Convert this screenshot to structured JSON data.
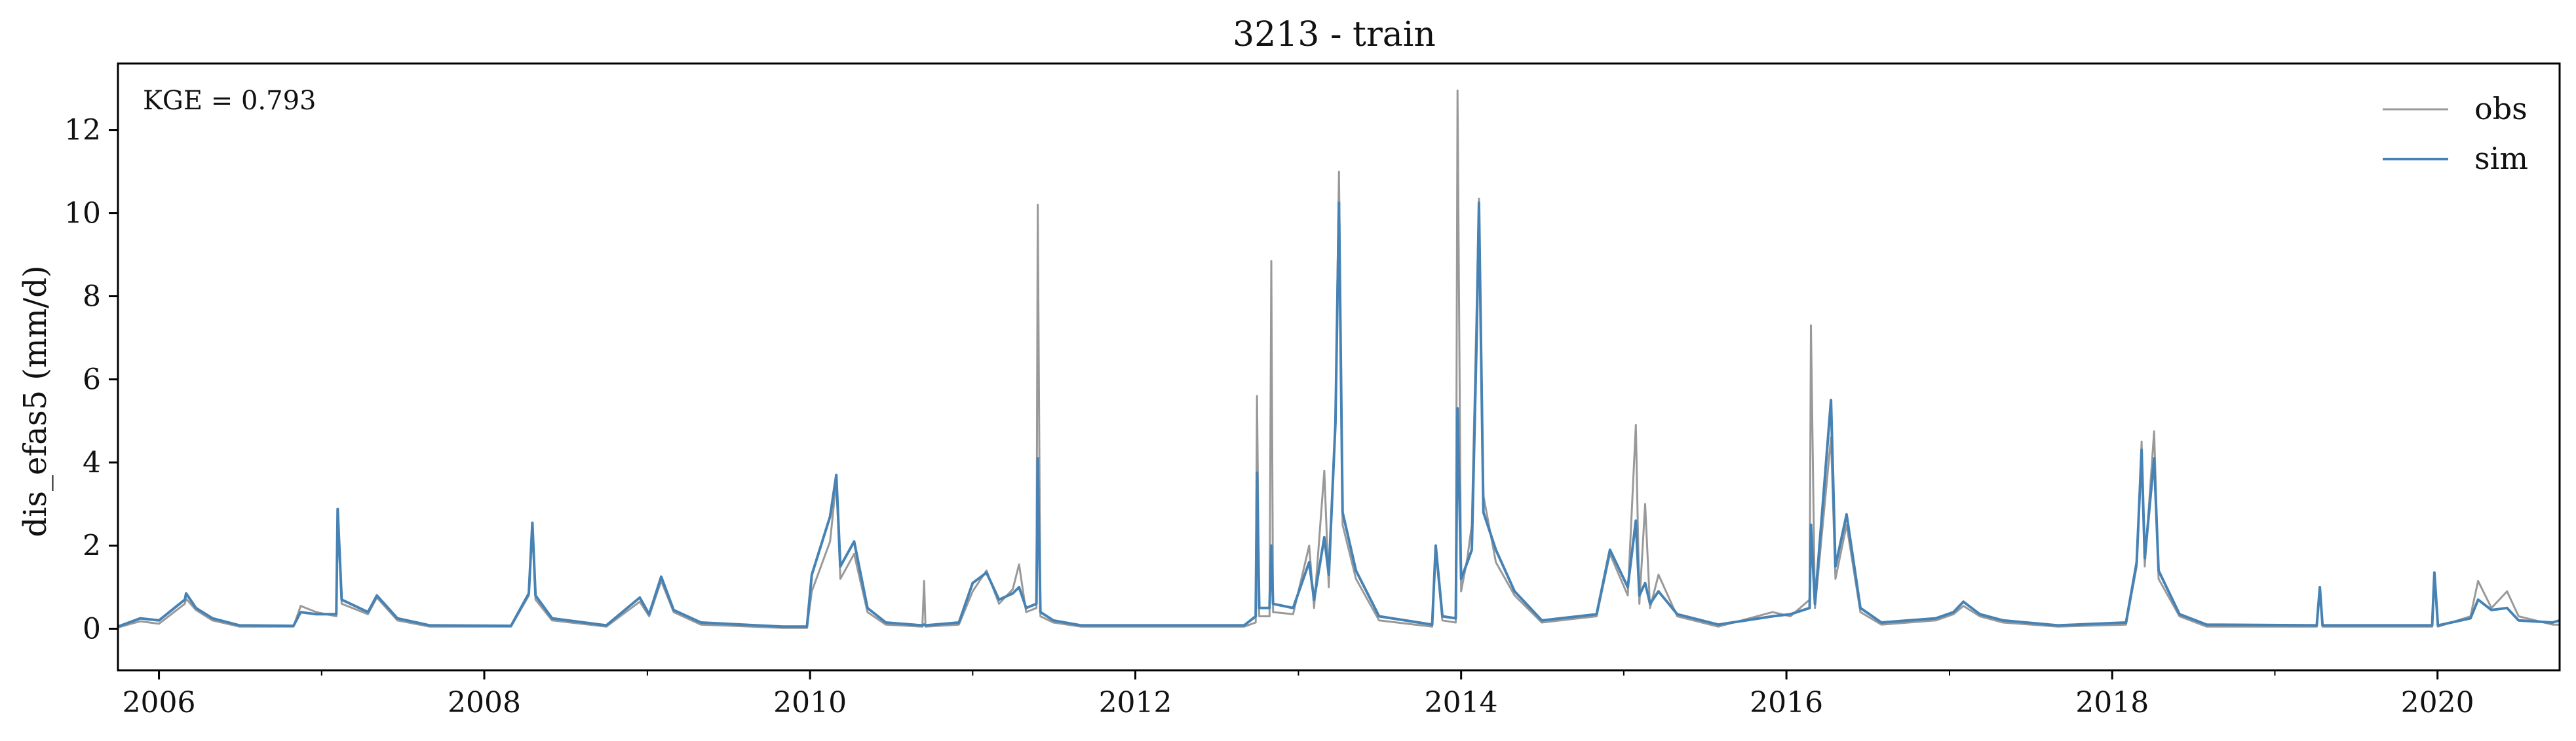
{
  "chart_data": {
    "type": "line",
    "title": "3213 - train",
    "xlabel": "",
    "ylabel": "dis_efas5 (mm/d)",
    "annotation": "KGE = 0.793",
    "xlim": [
      "2005-10-01",
      "2020-10-01"
    ],
    "ylim": [
      -1.0,
      13.6
    ],
    "x_major_ticks": [
      {
        "date": "2006-01-01",
        "label": "2006"
      },
      {
        "date": "2008-01-01",
        "label": "2008"
      },
      {
        "date": "2010-01-01",
        "label": "2010"
      },
      {
        "date": "2012-01-01",
        "label": "2012"
      },
      {
        "date": "2014-01-01",
        "label": "2014"
      },
      {
        "date": "2016-01-01",
        "label": "2016"
      },
      {
        "date": "2018-01-01",
        "label": "2018"
      },
      {
        "date": "2020-01-01",
        "label": "2020"
      }
    ],
    "x_minor_ticks": [
      "2007-01-01",
      "2009-01-01",
      "2011-01-01",
      "2013-01-01",
      "2015-01-01",
      "2017-01-01",
      "2019-01-01"
    ],
    "y_ticks": [
      0,
      2,
      4,
      6,
      8,
      10,
      12
    ],
    "legend": {
      "position": "top-right"
    },
    "grid": false,
    "series": [
      {
        "name": "obs",
        "color": "#999999",
        "points": [
          [
            "2005-10-01",
            0.03
          ],
          [
            "2005-11-20",
            0.18
          ],
          [
            "2006-01-01",
            0.12
          ],
          [
            "2006-02-28",
            0.6
          ],
          [
            "2006-03-03",
            0.72
          ],
          [
            "2006-03-25",
            0.45
          ],
          [
            "2006-05-01",
            0.2
          ],
          [
            "2006-07-01",
            0.05
          ],
          [
            "2006-10-30",
            0.05
          ],
          [
            "2006-11-15",
            0.55
          ],
          [
            "2006-12-20",
            0.4
          ],
          [
            "2007-02-03",
            0.3
          ],
          [
            "2007-02-06",
            2.75
          ],
          [
            "2007-02-15",
            0.6
          ],
          [
            "2007-04-15",
            0.35
          ],
          [
            "2007-05-05",
            0.75
          ],
          [
            "2007-06-20",
            0.2
          ],
          [
            "2007-09-01",
            0.05
          ],
          [
            "2008-03-01",
            0.05
          ],
          [
            "2008-04-10",
            0.8
          ],
          [
            "2008-04-18",
            2.45
          ],
          [
            "2008-04-25",
            0.7
          ],
          [
            "2008-06-01",
            0.2
          ],
          [
            "2008-10-01",
            0.05
          ],
          [
            "2008-12-15",
            0.65
          ],
          [
            "2009-01-05",
            0.3
          ],
          [
            "2009-02-01",
            1.15
          ],
          [
            "2009-03-01",
            0.4
          ],
          [
            "2009-05-01",
            0.1
          ],
          [
            "2009-11-01",
            0.02
          ],
          [
            "2009-12-25",
            0.02
          ],
          [
            "2010-01-05",
            0.9
          ],
          [
            "2010-02-15",
            2.1
          ],
          [
            "2010-03-01",
            3.55
          ],
          [
            "2010-03-10",
            1.2
          ],
          [
            "2010-04-10",
            1.8
          ],
          [
            "2010-05-10",
            0.4
          ],
          [
            "2010-06-20",
            0.1
          ],
          [
            "2010-09-10",
            0.05
          ],
          [
            "2010-09-14",
            1.15
          ],
          [
            "2010-09-17",
            0.05
          ],
          [
            "2010-12-01",
            0.1
          ],
          [
            "2011-01-01",
            0.9
          ],
          [
            "2011-02-01",
            1.4
          ],
          [
            "2011-03-01",
            0.6
          ],
          [
            "2011-04-01",
            0.95
          ],
          [
            "2011-04-15",
            1.55
          ],
          [
            "2011-05-01",
            0.4
          ],
          [
            "2011-05-24",
            0.5
          ],
          [
            "2011-05-27",
            10.2
          ],
          [
            "2011-06-02",
            0.3
          ],
          [
            "2011-07-01",
            0.15
          ],
          [
            "2011-09-01",
            0.05
          ],
          [
            "2012-09-01",
            0.05
          ],
          [
            "2012-09-27",
            0.15
          ],
          [
            "2012-09-30",
            5.6
          ],
          [
            "2012-10-05",
            0.3
          ],
          [
            "2012-10-28",
            0.3
          ],
          [
            "2012-11-01",
            8.85
          ],
          [
            "2012-11-05",
            0.4
          ],
          [
            "2012-12-20",
            0.35
          ],
          [
            "2013-01-25",
            2.0
          ],
          [
            "2013-02-05",
            0.5
          ],
          [
            "2013-02-28",
            3.8
          ],
          [
            "2013-03-10",
            1.0
          ],
          [
            "2013-03-25",
            5.0
          ],
          [
            "2013-04-02",
            11.0
          ],
          [
            "2013-04-10",
            2.5
          ],
          [
            "2013-05-10",
            1.2
          ],
          [
            "2013-07-01",
            0.2
          ],
          [
            "2013-10-28",
            0.05
          ],
          [
            "2013-11-05",
            1.9
          ],
          [
            "2013-11-20",
            0.2
          ],
          [
            "2013-12-20",
            0.15
          ],
          [
            "2013-12-24",
            12.95
          ],
          [
            "2014-01-01",
            0.9
          ],
          [
            "2014-01-15",
            1.7
          ],
          [
            "2014-01-25",
            2.5
          ],
          [
            "2014-02-05",
            7.8
          ],
          [
            "2014-02-10",
            10.35
          ],
          [
            "2014-02-20",
            3.2
          ],
          [
            "2014-03-20",
            1.6
          ],
          [
            "2014-05-01",
            0.8
          ],
          [
            "2014-07-01",
            0.15
          ],
          [
            "2014-11-01",
            0.3
          ],
          [
            "2014-12-01",
            1.8
          ],
          [
            "2015-01-10",
            0.8
          ],
          [
            "2015-01-28",
            4.9
          ],
          [
            "2015-02-05",
            0.6
          ],
          [
            "2015-02-18",
            3.0
          ],
          [
            "2015-03-01",
            0.5
          ],
          [
            "2015-03-20",
            1.3
          ],
          [
            "2015-05-01",
            0.3
          ],
          [
            "2015-08-01",
            0.05
          ],
          [
            "2015-12-01",
            0.4
          ],
          [
            "2016-01-10",
            0.3
          ],
          [
            "2016-02-22",
            0.7
          ],
          [
            "2016-02-25",
            7.3
          ],
          [
            "2016-03-05",
            0.5
          ],
          [
            "2016-04-10",
            4.6
          ],
          [
            "2016-04-20",
            1.2
          ],
          [
            "2016-05-15",
            2.5
          ],
          [
            "2016-06-15",
            0.4
          ],
          [
            "2016-08-01",
            0.1
          ],
          [
            "2016-12-01",
            0.2
          ],
          [
            "2017-01-10",
            0.35
          ],
          [
            "2017-02-01",
            0.55
          ],
          [
            "2017-03-10",
            0.3
          ],
          [
            "2017-05-01",
            0.15
          ],
          [
            "2017-09-01",
            0.05
          ],
          [
            "2018-02-01",
            0.1
          ],
          [
            "2018-02-25",
            1.5
          ],
          [
            "2018-03-08",
            4.5
          ],
          [
            "2018-03-15",
            1.5
          ],
          [
            "2018-04-05",
            4.75
          ],
          [
            "2018-04-15",
            1.2
          ],
          [
            "2018-06-01",
            0.3
          ],
          [
            "2018-08-01",
            0.05
          ],
          [
            "2019-04-05",
            0.05
          ],
          [
            "2019-04-12",
            0.95
          ],
          [
            "2019-04-18",
            0.05
          ],
          [
            "2019-12-20",
            0.05
          ],
          [
            "2019-12-25",
            1.3
          ],
          [
            "2020-01-02",
            0.05
          ],
          [
            "2020-03-15",
            0.3
          ],
          [
            "2020-04-01",
            1.15
          ],
          [
            "2020-05-01",
            0.5
          ],
          [
            "2020-06-05",
            0.9
          ],
          [
            "2020-07-01",
            0.3
          ],
          [
            "2020-09-15",
            0.1
          ],
          [
            "2020-10-01",
            0.1
          ]
        ]
      },
      {
        "name": "sim",
        "color": "#4682b4",
        "points": [
          [
            "2005-10-01",
            0.05
          ],
          [
            "2005-11-20",
            0.25
          ],
          [
            "2006-01-01",
            0.2
          ],
          [
            "2006-02-28",
            0.7
          ],
          [
            "2006-03-03",
            0.85
          ],
          [
            "2006-03-25",
            0.5
          ],
          [
            "2006-05-01",
            0.25
          ],
          [
            "2006-07-01",
            0.08
          ],
          [
            "2006-10-30",
            0.07
          ],
          [
            "2006-11-15",
            0.4
          ],
          [
            "2006-12-20",
            0.35
          ],
          [
            "2007-02-03",
            0.35
          ],
          [
            "2007-02-06",
            2.88
          ],
          [
            "2007-02-15",
            0.7
          ],
          [
            "2007-04-15",
            0.4
          ],
          [
            "2007-05-05",
            0.8
          ],
          [
            "2007-06-20",
            0.25
          ],
          [
            "2007-09-01",
            0.08
          ],
          [
            "2008-03-01",
            0.07
          ],
          [
            "2008-04-10",
            0.85
          ],
          [
            "2008-04-18",
            2.55
          ],
          [
            "2008-04-25",
            0.8
          ],
          [
            "2008-06-01",
            0.25
          ],
          [
            "2008-10-01",
            0.08
          ],
          [
            "2008-12-15",
            0.75
          ],
          [
            "2009-01-05",
            0.35
          ],
          [
            "2009-02-01",
            1.25
          ],
          [
            "2009-03-01",
            0.45
          ],
          [
            "2009-05-01",
            0.15
          ],
          [
            "2009-11-01",
            0.05
          ],
          [
            "2009-12-25",
            0.05
          ],
          [
            "2010-01-05",
            1.3
          ],
          [
            "2010-02-15",
            2.7
          ],
          [
            "2010-03-01",
            3.7
          ],
          [
            "2010-03-10",
            1.5
          ],
          [
            "2010-04-10",
            2.1
          ],
          [
            "2010-05-10",
            0.5
          ],
          [
            "2010-06-20",
            0.15
          ],
          [
            "2010-09-10",
            0.08
          ],
          [
            "2010-09-14",
            0.1
          ],
          [
            "2010-09-17",
            0.08
          ],
          [
            "2010-12-01",
            0.15
          ],
          [
            "2011-01-01",
            1.1
          ],
          [
            "2011-02-01",
            1.35
          ],
          [
            "2011-03-01",
            0.7
          ],
          [
            "2011-04-01",
            0.85
          ],
          [
            "2011-04-15",
            1.0
          ],
          [
            "2011-05-01",
            0.5
          ],
          [
            "2011-05-24",
            0.6
          ],
          [
            "2011-05-27",
            4.1
          ],
          [
            "2011-06-02",
            0.4
          ],
          [
            "2011-07-01",
            0.2
          ],
          [
            "2011-09-01",
            0.08
          ],
          [
            "2012-09-01",
            0.08
          ],
          [
            "2012-09-27",
            0.3
          ],
          [
            "2012-09-30",
            3.75
          ],
          [
            "2012-10-05",
            0.5
          ],
          [
            "2012-10-28",
            0.5
          ],
          [
            "2012-11-01",
            2.0
          ],
          [
            "2012-11-05",
            0.6
          ],
          [
            "2012-12-20",
            0.5
          ],
          [
            "2013-01-25",
            1.6
          ],
          [
            "2013-02-05",
            0.7
          ],
          [
            "2013-02-28",
            2.2
          ],
          [
            "2013-03-10",
            1.3
          ],
          [
            "2013-03-25",
            4.95
          ],
          [
            "2013-04-02",
            10.25
          ],
          [
            "2013-04-10",
            2.8
          ],
          [
            "2013-05-10",
            1.4
          ],
          [
            "2013-07-01",
            0.3
          ],
          [
            "2013-10-28",
            0.1
          ],
          [
            "2013-11-05",
            2.0
          ],
          [
            "2013-11-20",
            0.3
          ],
          [
            "2013-12-20",
            0.25
          ],
          [
            "2013-12-24",
            5.3
          ],
          [
            "2014-01-01",
            1.2
          ],
          [
            "2014-01-15",
            1.6
          ],
          [
            "2014-01-25",
            1.9
          ],
          [
            "2014-02-05",
            7.1
          ],
          [
            "2014-02-10",
            10.25
          ],
          [
            "2014-02-20",
            2.8
          ],
          [
            "2014-03-20",
            1.9
          ],
          [
            "2014-05-01",
            0.9
          ],
          [
            "2014-07-01",
            0.2
          ],
          [
            "2014-11-01",
            0.35
          ],
          [
            "2014-12-01",
            1.9
          ],
          [
            "2015-01-10",
            1.0
          ],
          [
            "2015-01-28",
            2.6
          ],
          [
            "2015-02-05",
            0.8
          ],
          [
            "2015-02-18",
            1.1
          ],
          [
            "2015-03-01",
            0.6
          ],
          [
            "2015-03-20",
            0.9
          ],
          [
            "2015-05-01",
            0.35
          ],
          [
            "2015-08-01",
            0.1
          ],
          [
            "2015-12-01",
            0.3
          ],
          [
            "2016-01-10",
            0.35
          ],
          [
            "2016-02-22",
            0.5
          ],
          [
            "2016-02-25",
            2.5
          ],
          [
            "2016-03-05",
            0.6
          ],
          [
            "2016-04-10",
            5.5
          ],
          [
            "2016-04-20",
            1.5
          ],
          [
            "2016-05-15",
            2.75
          ],
          [
            "2016-06-15",
            0.5
          ],
          [
            "2016-08-01",
            0.15
          ],
          [
            "2016-12-01",
            0.25
          ],
          [
            "2017-01-10",
            0.4
          ],
          [
            "2017-02-01",
            0.65
          ],
          [
            "2017-03-10",
            0.35
          ],
          [
            "2017-05-01",
            0.2
          ],
          [
            "2017-09-01",
            0.08
          ],
          [
            "2018-02-01",
            0.15
          ],
          [
            "2018-02-25",
            1.6
          ],
          [
            "2018-03-08",
            4.3
          ],
          [
            "2018-03-15",
            1.7
          ],
          [
            "2018-04-05",
            4.1
          ],
          [
            "2018-04-15",
            1.4
          ],
          [
            "2018-06-01",
            0.35
          ],
          [
            "2018-08-01",
            0.1
          ],
          [
            "2019-04-05",
            0.08
          ],
          [
            "2019-04-12",
            1.0
          ],
          [
            "2019-04-18",
            0.08
          ],
          [
            "2019-12-20",
            0.08
          ],
          [
            "2019-12-25",
            1.35
          ],
          [
            "2020-01-02",
            0.08
          ],
          [
            "2020-03-15",
            0.25
          ],
          [
            "2020-04-01",
            0.7
          ],
          [
            "2020-05-01",
            0.45
          ],
          [
            "2020-06-05",
            0.5
          ],
          [
            "2020-07-01",
            0.2
          ],
          [
            "2020-09-15",
            0.15
          ],
          [
            "2020-10-01",
            0.2
          ]
        ]
      }
    ]
  }
}
